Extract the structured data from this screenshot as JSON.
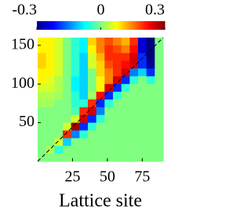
{
  "chart_data": {
    "type": "heatmap",
    "xlabel": "Lattice site",
    "colormap": "jet",
    "xlim": [
      0,
      90
    ],
    "ylim": [
      0,
      160
    ],
    "xticks": [
      25,
      50,
      75
    ],
    "yticks": [
      50,
      100,
      150
    ],
    "clim": [
      -0.3,
      0.3
    ],
    "cticks": [
      -0.3,
      0,
      0.3
    ],
    "z": [
      [
        0.08,
        0.08,
        0.05,
        0,
        -0.05,
        -0.08,
        0.1,
        0.15,
        0.18,
        0.15,
        0.12,
        0.2,
        -0.25,
        -0.3,
        0
      ],
      [
        0.08,
        0.08,
        0.05,
        0,
        -0.05,
        -0.08,
        0.08,
        0.15,
        0.2,
        0.18,
        0.15,
        0.22,
        -0.25,
        -0.3,
        0
      ],
      [
        0.1,
        0.08,
        0.05,
        0,
        -0.05,
        -0.1,
        0.05,
        0.12,
        0.2,
        0.2,
        0.2,
        0.25,
        -0.2,
        -0.3,
        0
      ],
      [
        0.1,
        0.08,
        0.05,
        0,
        -0.05,
        -0.1,
        0.05,
        0.1,
        0.18,
        0.2,
        0.22,
        0.25,
        -0.2,
        -0.28,
        0
      ],
      [
        0.08,
        0.08,
        0.05,
        0,
        -0.05,
        -0.1,
        0,
        0.1,
        0.15,
        0.2,
        0.25,
        -0.15,
        -0.1,
        -0.2,
        0
      ],
      [
        0.08,
        0.06,
        0.03,
        0,
        -0.08,
        -0.1,
        0,
        0.08,
        0.15,
        0.25,
        -0.2,
        -0.05,
        0,
        -0.05,
        0
      ],
      [
        0.05,
        0.05,
        0.03,
        0,
        -0.08,
        -0.1,
        0,
        0.08,
        0.25,
        -0.2,
        -0.05,
        0,
        0,
        0,
        0
      ],
      [
        0.03,
        0.03,
        0.02,
        0,
        -0.05,
        -0.1,
        0.02,
        0.22,
        -0.2,
        -0.05,
        0,
        0,
        0,
        0,
        0
      ],
      [
        0.02,
        0.02,
        0,
        0,
        -0.05,
        -0.05,
        0.2,
        -0.2,
        -0.05,
        0,
        0,
        0,
        0,
        0,
        0
      ],
      [
        0,
        0,
        0,
        0,
        -0.03,
        0.2,
        0.25,
        -0.15,
        0,
        0,
        0,
        0,
        0,
        0,
        0
      ],
      [
        0,
        0,
        0,
        0,
        0.05,
        0.25,
        -0.2,
        -0.05,
        0,
        0,
        0,
        0,
        0,
        0,
        0
      ],
      [
        0,
        0,
        0,
        0.05,
        0.28,
        -0.2,
        -0.05,
        0,
        0,
        0,
        0,
        0,
        0,
        0,
        0
      ],
      [
        0,
        0,
        0,
        0.2,
        -0.15,
        -0.05,
        0,
        0,
        0,
        0,
        0,
        0,
        0,
        0,
        0
      ],
      [
        0,
        0,
        0.05,
        -0.1,
        0,
        0,
        0,
        0,
        0,
        0,
        0,
        0,
        0,
        0,
        0
      ],
      [
        0,
        0.03,
        -0.05,
        0,
        0,
        0,
        0,
        0,
        0,
        0,
        0,
        0,
        0,
        0,
        0
      ],
      [
        0,
        0,
        0,
        0,
        0,
        0,
        0,
        0,
        0,
        0,
        0,
        0,
        0,
        0,
        0
      ]
    ]
  }
}
